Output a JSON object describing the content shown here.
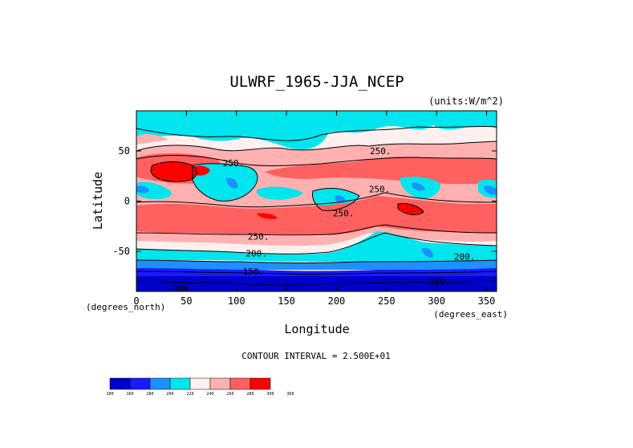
{
  "chart_data": {
    "type": "heatmap",
    "title": "ULWRF_1965-JJA_NCEP",
    "units_label": "(units:W/m^2)",
    "xlabel": "Longitude",
    "ylabel": "Latitude",
    "x_unit_note": "(degrees_east)",
    "y_unit_note": "(degrees_north)",
    "xlim": [
      0,
      360
    ],
    "ylim": [
      -90,
      90
    ],
    "x_ticks": [
      0,
      50,
      100,
      150,
      200,
      250,
      300,
      350
    ],
    "y_ticks": [
      -50,
      0,
      50
    ],
    "contour_interval_text": "CONTOUR INTERVAL = 2.500E+01",
    "colorbar": {
      "levels": [
        "100",
        "160",
        "180",
        "200",
        "220",
        "240",
        "260",
        "280",
        "300",
        "360"
      ],
      "colors": [
        "#0000cc",
        "#1a1aff",
        "#1e90ff",
        "#00e5ee",
        "#fff0f0",
        "#ffb0b0",
        "#ff6060",
        "#ff0000"
      ]
    },
    "contour_labels": [
      {
        "text": "250",
        "lon": 97,
        "lat": 38
      },
      {
        "text": "250",
        "lon": 244,
        "lat": 50
      },
      {
        "text": "250",
        "lon": 243,
        "lat": 12
      },
      {
        "text": "250",
        "lon": 207,
        "lat": -12
      },
      {
        "text": "250",
        "lon": 122,
        "lat": -35
      },
      {
        "text": "200",
        "lon": 120,
        "lat": -52
      },
      {
        "text": "200",
        "lon": 328,
        "lat": -55
      },
      {
        "text": "150",
        "lon": 117,
        "lat": -70
      },
      {
        "text": "100",
        "lon": 45,
        "lat": -87
      },
      {
        "text": "150",
        "lon": 303,
        "lat": -80
      }
    ]
  }
}
